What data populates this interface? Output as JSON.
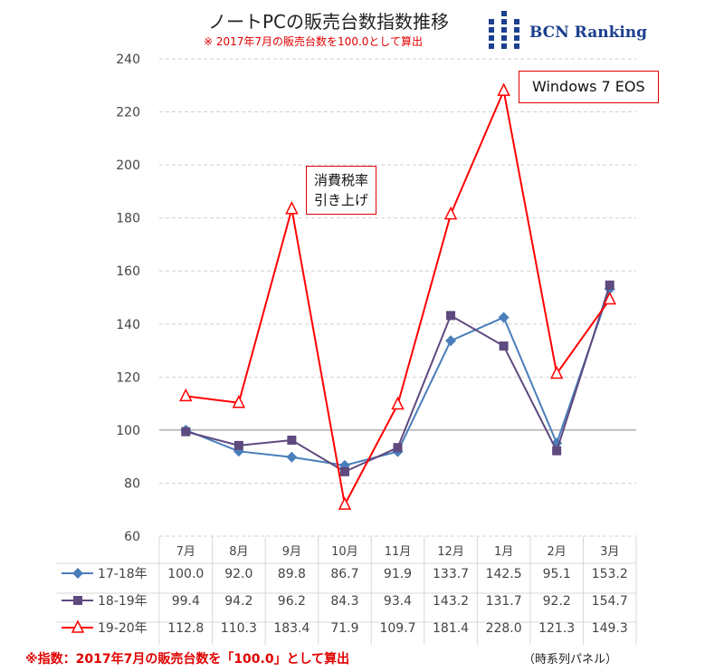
{
  "header": {
    "title": "ノートPCの販売台数指数推移",
    "subtitle": "※ 2017年7月の販売台数を100.0として算出",
    "logo_text": "BCN Ranking"
  },
  "annotations": {
    "tax": [
      "消費税率",
      "引き上げ"
    ],
    "windows": "Windows 7 EOS"
  },
  "footer": {
    "note": "※指数：2017年7月の販売台数を「100.0」として算出",
    "panel": "（時系列パネル）"
  },
  "chart_data": {
    "type": "line",
    "title": "ノートPCの販売台数指数推移",
    "categories": [
      "7月",
      "8月",
      "9月",
      "10月",
      "11月",
      "12月",
      "1月",
      "2月",
      "3月"
    ],
    "ylim": [
      60,
      240
    ],
    "yticks": [
      60,
      80,
      100,
      120,
      140,
      160,
      180,
      200,
      220,
      240
    ],
    "grid": true,
    "reference_line": 100,
    "legend_placement": "bottom-table",
    "series": [
      {
        "name": "17-18年",
        "color": "#4a7ebb",
        "marker": "diamond",
        "values": [
          100.0,
          92.0,
          89.8,
          86.7,
          91.9,
          133.7,
          142.5,
          95.1,
          153.2
        ]
      },
      {
        "name": "18-19年",
        "color": "#5e4a7e",
        "marker": "square",
        "values": [
          99.4,
          94.2,
          96.2,
          84.3,
          93.4,
          143.2,
          131.7,
          92.2,
          154.7
        ]
      },
      {
        "name": "19-20年",
        "color": "#ff0000",
        "marker": "triangle-open",
        "values": [
          112.8,
          110.3,
          183.4,
          71.9,
          109.7,
          181.4,
          228.0,
          121.3,
          149.3
        ]
      }
    ],
    "value_labels": [
      [
        "100.0",
        "92.0",
        "89.8",
        "86.7",
        "91.9",
        "133.7",
        "142.5",
        "95.1",
        "153.2"
      ],
      [
        "99.4",
        "94.2",
        "96.2",
        "84.3",
        "93.4",
        "143.2",
        "131.7",
        "92.2",
        "154.7"
      ],
      [
        "112.8",
        "110.3",
        "183.4",
        "71.9",
        "109.7",
        "181.4",
        "228.0",
        "121.3",
        "149.3"
      ]
    ]
  }
}
